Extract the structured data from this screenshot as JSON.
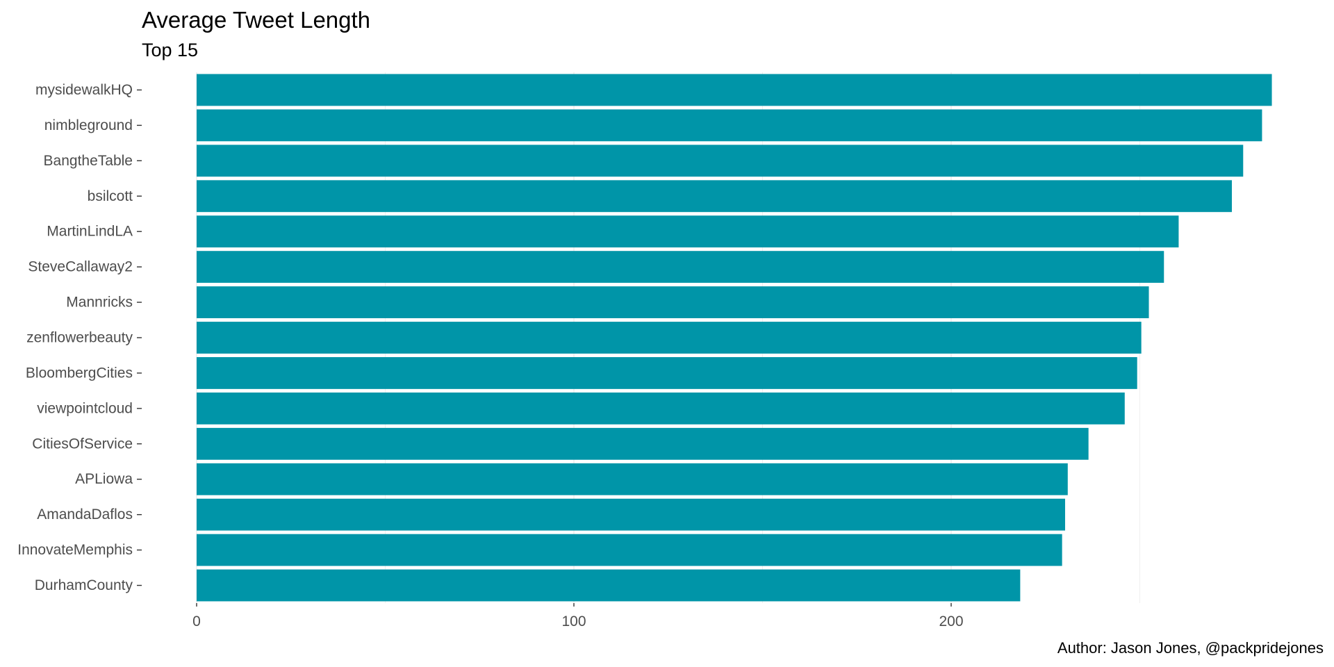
{
  "chart_data": {
    "type": "bar",
    "orientation": "horizontal",
    "title": "Average Tweet Length",
    "subtitle": "Top 15",
    "caption": "Author: Jason Jones, @packpridejones",
    "categories": [
      "mysidewalkHQ",
      "nimbleground",
      "BangtheTable",
      "bsilcott",
      "MartinLindLA",
      "SteveCallaway2",
      "Mannricks",
      "zenflowerbeauty",
      "BloombergCities",
      "viewpointcloud",
      "CitiesOfService",
      "APLiowa",
      "AmandaDaflos",
      "InnovateMemphis",
      "DurhamCounty"
    ],
    "values": [
      285,
      282.4,
      277.4,
      274.4,
      260.3,
      256.4,
      252.4,
      250.4,
      249.3,
      246,
      236.4,
      230.9,
      230.2,
      229.4,
      218.3
    ],
    "xlim": [
      0,
      290
    ],
    "xticks": [
      0,
      100,
      200
    ],
    "xlabel": "",
    "ylabel": "",
    "grid": "vertical major and minor lines",
    "legend": "none",
    "bar_color": "#0095A8",
    "grid_color": "#EBEBEB"
  }
}
